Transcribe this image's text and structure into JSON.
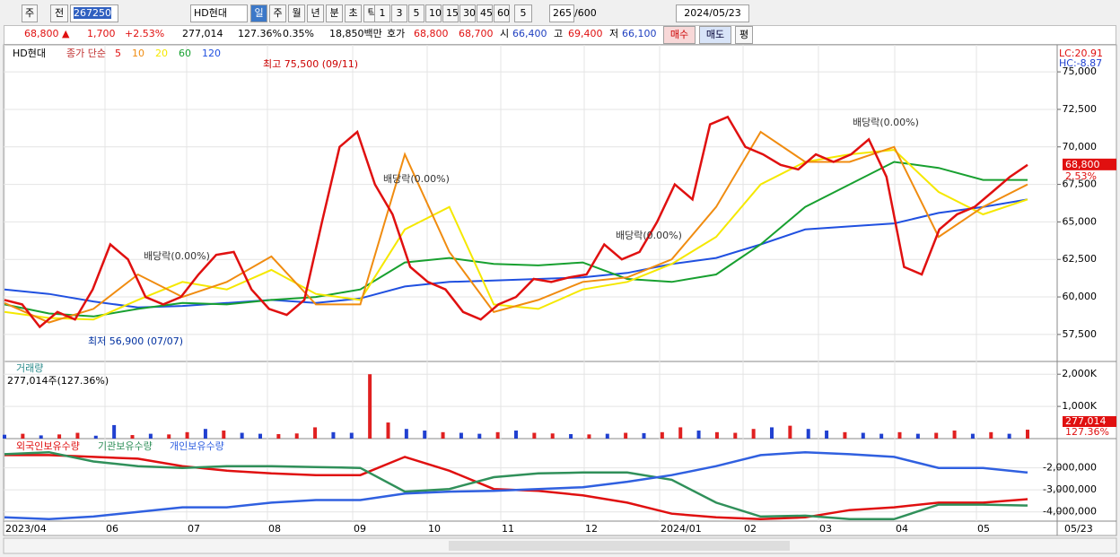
{
  "toolbar": {
    "period": "주",
    "prev": "전",
    "code": "267250",
    "name": "HD현대",
    "intervals": [
      "일",
      "주",
      "월",
      "년",
      "분",
      "초",
      "틱"
    ],
    "minutes": [
      "1",
      "3",
      "5",
      "10",
      "15",
      "30",
      "45",
      "60"
    ],
    "count": "5",
    "shown": "265",
    "total": "/600",
    "date": "2024/05/23"
  },
  "infobar": {
    "price": "68,800 ▲",
    "change": "1,700",
    "rate": "+2.53%",
    "volume": "277,014",
    "vol_rate": "127.36%",
    "turnover": "0.35%",
    "amount": "18,850백만",
    "quote": "호가",
    "ask": "68,800",
    "bid": "68,700",
    "open_label": "시",
    "open": "66,400",
    "high_label": "고",
    "high": "69,400",
    "low_label": "저",
    "low": "66,100",
    "buy": "매수",
    "sell": "매도",
    "avg": "평"
  },
  "price_chart": {
    "name": "HD현대",
    "legend": "종가 단순",
    "ylim": [
      55700,
      76800
    ],
    "yticks": [
      {
        "value": 57500,
        "label": "57,500"
      },
      {
        "value": 60000,
        "label": "60,000"
      },
      {
        "value": 62500,
        "label": "62,500"
      },
      {
        "value": 65000,
        "label": "65,000"
      },
      {
        "value": 67500,
        "label": "67,500"
      },
      {
        "value": 70000,
        "label": "70,000"
      },
      {
        "value": 72500,
        "label": "72,500"
      },
      {
        "value": 75000,
        "label": "75,000"
      }
    ],
    "lc": "LC:20.91",
    "hc": "HC:-8.87",
    "last": "68,800",
    "last_rate": "2.53%",
    "annotations": [
      "최고 75,500 (09/11)",
      "최저 56,900 (07/07)",
      "배당락(0.00%)",
      "배당락(0.00%)",
      "배당락(0.00%)",
      "배당락(0.00%)"
    ],
    "series": [
      {
        "name": "5",
        "color": "#e01010",
        "values": [
          59800,
          59500,
          58000,
          59000,
          58500,
          60500,
          63500,
          62500,
          60000,
          59500,
          60000,
          61500,
          62800,
          63000,
          60500,
          59200,
          58800,
          59800,
          65000,
          70000,
          71000,
          67500,
          65500,
          62000,
          61000,
          60500,
          59000,
          58500,
          59500,
          60000,
          61200,
          61000,
          61300,
          61500,
          63500,
          62500,
          63000,
          65000,
          67500,
          66500,
          71500,
          72000,
          70000,
          69500,
          68800,
          68500,
          69500,
          69000,
          69500,
          70500,
          68000,
          62000,
          61500,
          64500,
          65500,
          66000,
          67000,
          68000,
          68800
        ]
      },
      {
        "name": "10",
        "color": "#f08c10",
        "values": [
          59600,
          58300,
          59200,
          61500,
          60000,
          61000,
          62700,
          59500,
          59500,
          69500,
          63000,
          59000,
          59800,
          61000,
          61300,
          62500,
          66000,
          71000,
          69000,
          69000,
          70000,
          64000,
          66000,
          67500
        ]
      },
      {
        "name": "20",
        "color": "#f5e800",
        "values": [
          59000,
          58600,
          58500,
          59800,
          61000,
          60500,
          61800,
          60200,
          59800,
          64500,
          66000,
          59500,
          59200,
          60500,
          61000,
          62200,
          64000,
          67500,
          69000,
          69500,
          69800,
          67000,
          65500,
          66500
        ]
      },
      {
        "name": "60",
        "color": "#18a030",
        "values": [
          59500,
          58900,
          58700,
          59200,
          59600,
          59500,
          59800,
          60000,
          60500,
          62300,
          62600,
          62200,
          62100,
          62300,
          61200,
          61000,
          61500,
          63500,
          66000,
          67500,
          69000,
          68600,
          67800,
          67800
        ]
      },
      {
        "name": "120",
        "color": "#2050e0",
        "values": [
          60500,
          60200,
          59700,
          59300,
          59400,
          59600,
          59800,
          59600,
          59900,
          60700,
          61000,
          61100,
          61200,
          61300,
          61600,
          62200,
          62600,
          63500,
          64500,
          64700,
          64900,
          65600,
          66000,
          66500
        ]
      }
    ]
  },
  "volume_chart": {
    "title": "거래량",
    "info": "277,014주(127.36%)",
    "last": "277,014",
    "last_rate": "127.36%",
    "ylim": [
      0,
      2340
    ],
    "yticks": [
      {
        "value": 1000,
        "label": "1,000K"
      },
      {
        "value": 2000,
        "label": "2,000K"
      }
    ],
    "values": [
      120,
      150,
      100,
      130,
      180,
      90,
      420,
      110,
      150,
      130,
      200,
      300,
      250,
      180,
      150,
      140,
      160,
      350,
      200,
      180,
      2000,
      500,
      300,
      250,
      200,
      180,
      150,
      200,
      250,
      180,
      160,
      140,
      130,
      150,
      180,
      170,
      200,
      350,
      250,
      200,
      180,
      300,
      350,
      400,
      300,
      250,
      200,
      180,
      150,
      200,
      150,
      180,
      250,
      150,
      200,
      150,
      277
    ],
    "colors": [
      "#2040d0",
      "#e02020",
      "#2040d0",
      "#e02020",
      "#e02020",
      "#2040d0",
      "#2040d0",
      "#e02020",
      "#2040d0",
      "#e02020",
      "#e02020",
      "#2040d0",
      "#e02020",
      "#2040d0",
      "#2040d0",
      "#e02020",
      "#e02020",
      "#e02020",
      "#2040d0",
      "#2040d0",
      "#e02020",
      "#e02020",
      "#2040d0",
      "#2040d0",
      "#e02020",
      "#2040d0",
      "#2040d0",
      "#e02020",
      "#2040d0",
      "#e02020",
      "#e02020",
      "#2040d0",
      "#e02020",
      "#2040d0",
      "#e02020",
      "#2040d0",
      "#e02020",
      "#e02020",
      "#2040d0",
      "#e02020",
      "#e02020",
      "#e02020",
      "#2040d0",
      "#e02020",
      "#2040d0",
      "#2040d0",
      "#e02020",
      "#2040d0",
      "#2040d0",
      "#e02020",
      "#2040d0",
      "#e02020",
      "#e02020",
      "#2040d0",
      "#e02020",
      "#2040d0",
      "#e02020"
    ]
  },
  "holdings_chart": {
    "ylim": [
      -4420000,
      -750000
    ],
    "yticks": [
      {
        "value": -4000000,
        "label": "-4,000,000"
      },
      {
        "value": -3000000,
        "label": "-3,000,000"
      },
      {
        "value": -2000000,
        "label": "-2,000,000"
      }
    ],
    "series": [
      {
        "name": "외국인보유수량",
        "color": "#e01010",
        "values": [
          -1420000,
          -1420000,
          -1500000,
          -1580000,
          -1920000,
          -2130000,
          -2250000,
          -2330000,
          -2330000,
          -1500000,
          -2130000,
          -2960000,
          -3040000,
          -3250000,
          -3580000,
          -4080000,
          -4250000,
          -4330000,
          -4250000,
          -3920000,
          -3790000,
          -3580000,
          -3580000,
          -3420000
        ]
      },
      {
        "name": "기관보유수량",
        "color": "#30905a",
        "values": [
          -1380000,
          -1290000,
          -1710000,
          -1920000,
          -2000000,
          -1920000,
          -1920000,
          -1960000,
          -2000000,
          -3080000,
          -2960000,
          -2420000,
          -2250000,
          -2210000,
          -2210000,
          -2540000,
          -3580000,
          -4210000,
          -4170000,
          -4330000,
          -4330000,
          -3670000,
          -3670000,
          -3710000
        ]
      },
      {
        "name": "개인보유수량",
        "color": "#3060e0",
        "values": [
          -4250000,
          -4330000,
          -4210000,
          -4000000,
          -3790000,
          -3790000,
          -3580000,
          -3460000,
          -3460000,
          -3170000,
          -3080000,
          -3040000,
          -2960000,
          -2880000,
          -2630000,
          -2330000,
          -1920000,
          -1420000,
          -1290000,
          -1380000,
          -1500000,
          -2000000,
          -2000000,
          -2210000
        ]
      }
    ]
  },
  "x_axis": {
    "labels": [
      "2023/04",
      "06",
      "07",
      "08",
      "09",
      "10",
      "11",
      "12",
      "2024/01",
      "02",
      "03",
      "04",
      "05"
    ],
    "current": "05/23"
  }
}
